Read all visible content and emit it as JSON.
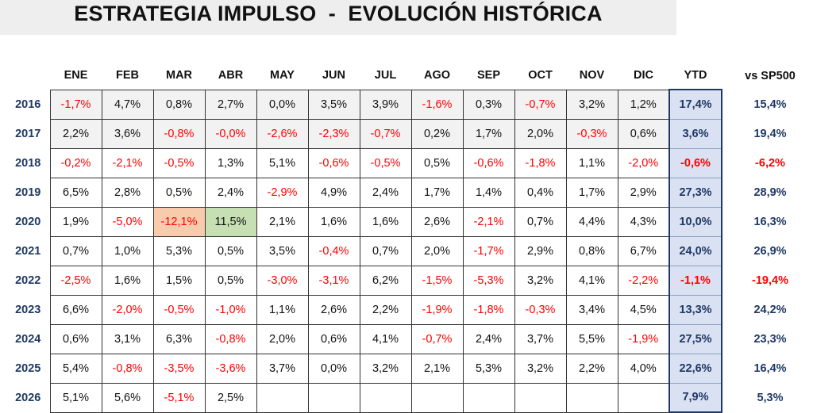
{
  "title": "ESTRATEGIA IMPULSO  -  EVOLUCIÓN HISTÓRICA",
  "headers": [
    "ENE",
    "FEB",
    "MAR",
    "ABR",
    "MAY",
    "JUN",
    "JUL",
    "AGO",
    "SEP",
    "OCT",
    "NOV",
    "DIC",
    "YTD",
    "vs SP500"
  ],
  "colors": {
    "negative": "#ff0000",
    "text": "#111111",
    "navy": "#1f3864",
    "ytd_bg": "#d9e1f2",
    "highlight_red": "#f8cbad",
    "highlight_green": "#c6e0b4"
  },
  "rows": [
    {
      "year": "2016",
      "months": [
        "-1,7%",
        "4,7%",
        "0,8%",
        "2,7%",
        "0,0%",
        "3,5%",
        "3,9%",
        "-1,6%",
        "0,3%",
        "-0,7%",
        "3,2%",
        "1,2%"
      ],
      "ytd": "17,4%",
      "vs": "15,4%"
    },
    {
      "year": "2017",
      "months": [
        "2,2%",
        "3,6%",
        "-0,8%",
        "-0,0%",
        "-2,6%",
        "-2,3%",
        "-0,7%",
        "0,2%",
        "1,7%",
        "2,0%",
        "-0,3%",
        "0,6%"
      ],
      "ytd": "3,6%",
      "vs": "19,4%"
    },
    {
      "year": "2018",
      "months": [
        "-0,2%",
        "-2,1%",
        "-0,5%",
        "1,3%",
        "5,1%",
        "-0,6%",
        "-0,5%",
        "0,5%",
        "-0,6%",
        "-1,8%",
        "1,1%",
        "-2,0%"
      ],
      "ytd": "-0,6%",
      "vs": "-6,2%"
    },
    {
      "year": "2019",
      "months": [
        "6,5%",
        "2,8%",
        "0,5%",
        "2,4%",
        "-2,9%",
        "4,9%",
        "2,4%",
        "1,7%",
        "1,4%",
        "0,4%",
        "1,7%",
        "2,9%"
      ],
      "ytd": "27,3%",
      "vs": "28,9%"
    },
    {
      "year": "2020",
      "months": [
        "1,9%",
        "-5,0%",
        "-12,1%",
        "11,5%",
        "2,1%",
        "1,6%",
        "1,6%",
        "2,6%",
        "-2,1%",
        "0,7%",
        "4,4%",
        "4,3%"
      ],
      "ytd": "10,0%",
      "vs": "16,3%"
    },
    {
      "year": "2021",
      "months": [
        "0,7%",
        "1,0%",
        "5,3%",
        "0,5%",
        "3,5%",
        "-0,4%",
        "0,7%",
        "2,0%",
        "-1,7%",
        "2,9%",
        "0,8%",
        "6,7%"
      ],
      "ytd": "24,0%",
      "vs": "26,9%"
    },
    {
      "year": "2022",
      "months": [
        "-2,5%",
        "1,6%",
        "1,5%",
        "0,5%",
        "-3,0%",
        "-3,1%",
        "6,2%",
        "-1,5%",
        "-5,3%",
        "3,2%",
        "4,1%",
        "-2,2%"
      ],
      "ytd": "-1,1%",
      "vs": "-19,4%"
    },
    {
      "year": "2023",
      "months": [
        "6,6%",
        "-2,0%",
        "-0,5%",
        "-1,0%",
        "1,1%",
        "2,6%",
        "2,2%",
        "-1,9%",
        "-1,8%",
        "-0,3%",
        "3,4%",
        "4,5%"
      ],
      "ytd": "13,3%",
      "vs": "24,2%"
    },
    {
      "year": "2024",
      "months": [
        "0,6%",
        "3,1%",
        "6,3%",
        "-0,8%",
        "2,0%",
        "0,6%",
        "4,1%",
        "-0,7%",
        "2,4%",
        "3,7%",
        "5,5%",
        "-1,9%"
      ],
      "ytd": "27,5%",
      "vs": "23,3%"
    },
    {
      "year": "2025",
      "months": [
        "5,4%",
        "-0,8%",
        "-3,5%",
        "-3,6%",
        "3,7%",
        "0,0%",
        "3,2%",
        "2,1%",
        "5,3%",
        "3,2%",
        "2,2%",
        "4,0%"
      ],
      "ytd": "22,6%",
      "vs": "16,4%"
    },
    {
      "year": "2026",
      "months": [
        "5,1%",
        "5,6%",
        "-5,1%",
        "2,5%",
        "",
        "",
        "",
        "",
        "",
        "",
        "",
        ""
      ],
      "ytd": "7,9%",
      "vs": "5,3%"
    }
  ]
}
